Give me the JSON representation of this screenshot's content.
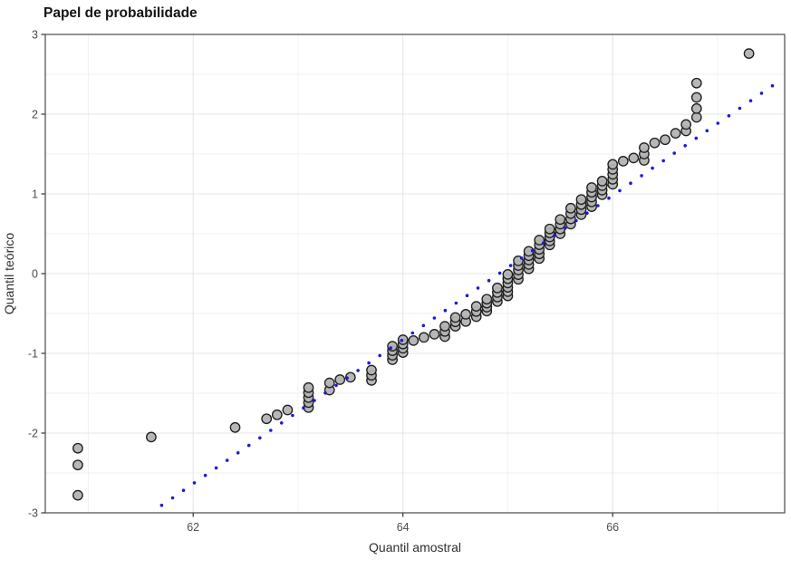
{
  "chart_data": {
    "type": "scatter",
    "subtype": "normal-qq-plot",
    "title": "Papel de probabilidade",
    "xlabel": "Quantil amostral",
    "ylabel": "Quantil teórico",
    "xlim": [
      60.59,
      67.64
    ],
    "ylim": [
      -3,
      3
    ],
    "x_major_ticks": [
      62,
      64,
      66
    ],
    "x_minor_gridlines": [
      61,
      63,
      65,
      67
    ],
    "y_major_ticks": [
      -3,
      -2,
      -1,
      0,
      1,
      2,
      3
    ],
    "y_minor_gridlines": [
      -2.5,
      -1.5,
      -0.5,
      0.5,
      1.5,
      2.5
    ],
    "grid": true,
    "legend": "none",
    "colors": {
      "background": "#ffffff",
      "panel_border": "#4a4a4a",
      "grid_major": "#e4e4e4",
      "grid_minor": "#f2f2f2",
      "tick_mark": "#333333",
      "point_fill": "#b3b3b3",
      "point_stroke": "#1f1f1f",
      "reference_line": "#1a1ae0"
    },
    "point_stacks_note": "each stack = [sample_quantile_x, theoretical_q_min, theoretical_q_max, n_points]",
    "point_stacks": [
      [
        60.9,
        -2.78,
        -2.78,
        1
      ],
      [
        60.9,
        -2.4,
        -2.4,
        1
      ],
      [
        60.9,
        -2.19,
        -2.19,
        1
      ],
      [
        61.6,
        -2.05,
        -2.05,
        1
      ],
      [
        62.4,
        -1.93,
        -1.93,
        1
      ],
      [
        62.7,
        -1.82,
        -1.82,
        1
      ],
      [
        62.8,
        -1.77,
        -1.77,
        1
      ],
      [
        62.9,
        -1.71,
        -1.71,
        1
      ],
      [
        63.1,
        -1.68,
        -1.43,
        5
      ],
      [
        63.3,
        -1.46,
        -1.37,
        2
      ],
      [
        63.4,
        -1.33,
        -1.33,
        1
      ],
      [
        63.5,
        -1.3,
        -1.3,
        1
      ],
      [
        63.7,
        -1.34,
        -1.21,
        3
      ],
      [
        63.9,
        -1.08,
        -0.91,
        4
      ],
      [
        64.0,
        -0.99,
        -0.83,
        4
      ],
      [
        64.1,
        -0.84,
        -0.84,
        1
      ],
      [
        64.2,
        -0.8,
        -0.8,
        1
      ],
      [
        64.3,
        -0.76,
        -0.76,
        1
      ],
      [
        64.4,
        -0.79,
        -0.66,
        3
      ],
      [
        64.5,
        -0.66,
        -0.55,
        3
      ],
      [
        64.6,
        -0.6,
        -0.51,
        2
      ],
      [
        64.7,
        -0.54,
        -0.41,
        3
      ],
      [
        64.8,
        -0.47,
        -0.32,
        4
      ],
      [
        64.9,
        -0.35,
        -0.18,
        4
      ],
      [
        65.0,
        -0.28,
        -0.01,
        6
      ],
      [
        65.1,
        -0.07,
        0.16,
        5
      ],
      [
        65.2,
        0.06,
        0.28,
        5
      ],
      [
        65.3,
        0.19,
        0.42,
        5
      ],
      [
        65.4,
        0.36,
        0.56,
        5
      ],
      [
        65.5,
        0.5,
        0.68,
        4
      ],
      [
        65.6,
        0.62,
        0.82,
        4
      ],
      [
        65.7,
        0.74,
        0.93,
        4
      ],
      [
        65.8,
        0.84,
        1.08,
        5
      ],
      [
        65.9,
        0.99,
        1.16,
        4
      ],
      [
        66.0,
        1.12,
        1.37,
        5
      ],
      [
        66.1,
        1.41,
        1.41,
        1
      ],
      [
        66.2,
        1.45,
        1.45,
        1
      ],
      [
        66.3,
        1.42,
        1.58,
        3
      ],
      [
        66.4,
        1.64,
        1.64,
        1
      ],
      [
        66.5,
        1.68,
        1.68,
        1
      ],
      [
        66.6,
        1.76,
        1.76,
        1
      ],
      [
        66.7,
        1.79,
        1.79,
        1
      ],
      [
        66.7,
        1.87,
        1.87,
        1
      ],
      [
        66.8,
        1.96,
        1.96,
        1
      ],
      [
        66.8,
        2.07,
        2.07,
        1
      ],
      [
        66.8,
        2.21,
        2.21,
        1
      ],
      [
        66.8,
        2.39,
        2.39,
        1
      ],
      [
        67.3,
        2.76,
        2.76,
        1
      ]
    ],
    "reference_line": {
      "style": "dotted",
      "q_slope": 0.9035,
      "x_at_q0": 64.916,
      "x_end": 67.6,
      "dot_step_x": 0.104,
      "dot_radius": 1.8
    },
    "point_radius": 5.2
  }
}
